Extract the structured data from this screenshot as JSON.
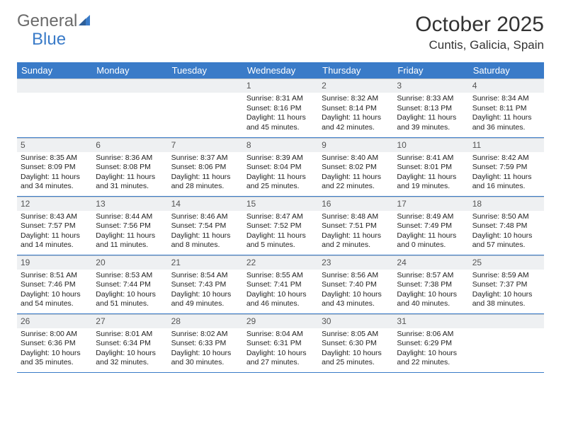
{
  "brand": {
    "part1": "General",
    "part2": "Blue"
  },
  "title": "October 2025",
  "location": "Cuntis, Galicia, Spain",
  "colors": {
    "header_bg": "#3a7bc8",
    "header_fg": "#ffffff",
    "daynum_bg": "#eef0f2",
    "row_border": "#3a7bc8",
    "brand_gray": "#6a6a6a",
    "brand_blue": "#3a7bc8"
  },
  "day_headers": [
    "Sunday",
    "Monday",
    "Tuesday",
    "Wednesday",
    "Thursday",
    "Friday",
    "Saturday"
  ],
  "weeks": [
    [
      {
        "n": "",
        "sr": "",
        "ss": "",
        "dl": ""
      },
      {
        "n": "",
        "sr": "",
        "ss": "",
        "dl": ""
      },
      {
        "n": "",
        "sr": "",
        "ss": "",
        "dl": ""
      },
      {
        "n": "1",
        "sr": "8:31 AM",
        "ss": "8:16 PM",
        "dl": "11 hours and 45 minutes."
      },
      {
        "n": "2",
        "sr": "8:32 AM",
        "ss": "8:14 PM",
        "dl": "11 hours and 42 minutes."
      },
      {
        "n": "3",
        "sr": "8:33 AM",
        "ss": "8:13 PM",
        "dl": "11 hours and 39 minutes."
      },
      {
        "n": "4",
        "sr": "8:34 AM",
        "ss": "8:11 PM",
        "dl": "11 hours and 36 minutes."
      }
    ],
    [
      {
        "n": "5",
        "sr": "8:35 AM",
        "ss": "8:09 PM",
        "dl": "11 hours and 34 minutes."
      },
      {
        "n": "6",
        "sr": "8:36 AM",
        "ss": "8:08 PM",
        "dl": "11 hours and 31 minutes."
      },
      {
        "n": "7",
        "sr": "8:37 AM",
        "ss": "8:06 PM",
        "dl": "11 hours and 28 minutes."
      },
      {
        "n": "8",
        "sr": "8:39 AM",
        "ss": "8:04 PM",
        "dl": "11 hours and 25 minutes."
      },
      {
        "n": "9",
        "sr": "8:40 AM",
        "ss": "8:02 PM",
        "dl": "11 hours and 22 minutes."
      },
      {
        "n": "10",
        "sr": "8:41 AM",
        "ss": "8:01 PM",
        "dl": "11 hours and 19 minutes."
      },
      {
        "n": "11",
        "sr": "8:42 AM",
        "ss": "7:59 PM",
        "dl": "11 hours and 16 minutes."
      }
    ],
    [
      {
        "n": "12",
        "sr": "8:43 AM",
        "ss": "7:57 PM",
        "dl": "11 hours and 14 minutes."
      },
      {
        "n": "13",
        "sr": "8:44 AM",
        "ss": "7:56 PM",
        "dl": "11 hours and 11 minutes."
      },
      {
        "n": "14",
        "sr": "8:46 AM",
        "ss": "7:54 PM",
        "dl": "11 hours and 8 minutes."
      },
      {
        "n": "15",
        "sr": "8:47 AM",
        "ss": "7:52 PM",
        "dl": "11 hours and 5 minutes."
      },
      {
        "n": "16",
        "sr": "8:48 AM",
        "ss": "7:51 PM",
        "dl": "11 hours and 2 minutes."
      },
      {
        "n": "17",
        "sr": "8:49 AM",
        "ss": "7:49 PM",
        "dl": "11 hours and 0 minutes."
      },
      {
        "n": "18",
        "sr": "8:50 AM",
        "ss": "7:48 PM",
        "dl": "10 hours and 57 minutes."
      }
    ],
    [
      {
        "n": "19",
        "sr": "8:51 AM",
        "ss": "7:46 PM",
        "dl": "10 hours and 54 minutes."
      },
      {
        "n": "20",
        "sr": "8:53 AM",
        "ss": "7:44 PM",
        "dl": "10 hours and 51 minutes."
      },
      {
        "n": "21",
        "sr": "8:54 AM",
        "ss": "7:43 PM",
        "dl": "10 hours and 49 minutes."
      },
      {
        "n": "22",
        "sr": "8:55 AM",
        "ss": "7:41 PM",
        "dl": "10 hours and 46 minutes."
      },
      {
        "n": "23",
        "sr": "8:56 AM",
        "ss": "7:40 PM",
        "dl": "10 hours and 43 minutes."
      },
      {
        "n": "24",
        "sr": "8:57 AM",
        "ss": "7:38 PM",
        "dl": "10 hours and 40 minutes."
      },
      {
        "n": "25",
        "sr": "8:59 AM",
        "ss": "7:37 PM",
        "dl": "10 hours and 38 minutes."
      }
    ],
    [
      {
        "n": "26",
        "sr": "8:00 AM",
        "ss": "6:36 PM",
        "dl": "10 hours and 35 minutes."
      },
      {
        "n": "27",
        "sr": "8:01 AM",
        "ss": "6:34 PM",
        "dl": "10 hours and 32 minutes."
      },
      {
        "n": "28",
        "sr": "8:02 AM",
        "ss": "6:33 PM",
        "dl": "10 hours and 30 minutes."
      },
      {
        "n": "29",
        "sr": "8:04 AM",
        "ss": "6:31 PM",
        "dl": "10 hours and 27 minutes."
      },
      {
        "n": "30",
        "sr": "8:05 AM",
        "ss": "6:30 PM",
        "dl": "10 hours and 25 minutes."
      },
      {
        "n": "31",
        "sr": "8:06 AM",
        "ss": "6:29 PM",
        "dl": "10 hours and 22 minutes."
      },
      {
        "n": "",
        "sr": "",
        "ss": "",
        "dl": ""
      }
    ]
  ],
  "labels": {
    "sunrise": "Sunrise: ",
    "sunset": "Sunset: ",
    "daylight": "Daylight: "
  }
}
